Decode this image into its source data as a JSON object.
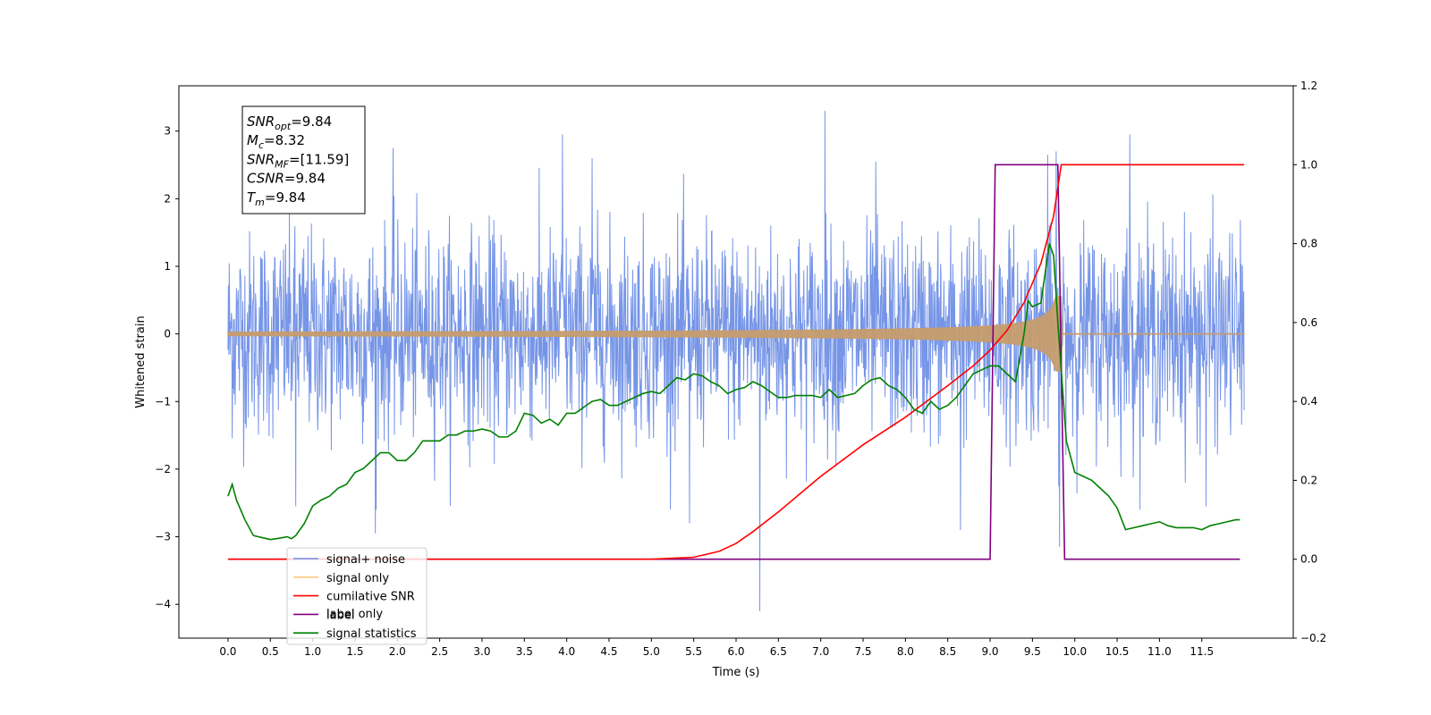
{
  "chart_data": {
    "type": "line",
    "xlabel": "Time (s)",
    "ylabel": "Whitened strain",
    "x_ticks": [
      "0.0",
      "0.5",
      "1.0",
      "1.5",
      "2.0",
      "2.5",
      "3.0",
      "3.5",
      "4.0",
      "4.5",
      "5.0",
      "5.5",
      "6.0",
      "6.5",
      "7.0",
      "7.5",
      "8.0",
      "8.5",
      "9.0",
      "9.5",
      "10.0",
      "10.5",
      "11.0",
      "11.5"
    ],
    "xlim": [
      -0.58,
      12.58
    ],
    "ylim_left": [
      -4.5,
      3.67
    ],
    "ylim_right": [
      -0.2,
      1.2
    ],
    "y_ticks_left": [
      -4,
      -3,
      -2,
      -1,
      0,
      1,
      2,
      3
    ],
    "y_ticks_right": [
      -0.2,
      0.0,
      0.2,
      0.4,
      0.6,
      0.8,
      1.0,
      1.2
    ],
    "annotation": [
      {
        "base": "SNR",
        "sub": "opt",
        "value": "=9.84"
      },
      {
        "base": "M",
        "sub": "c",
        "value": "=8.32"
      },
      {
        "base": "SNR",
        "sub": "MF",
        "value": "=[11.59]"
      },
      {
        "base": "CSNR",
        "sub": "",
        "value": "=9.84"
      },
      {
        "base": "T",
        "sub": "m",
        "value": "=9.84"
      }
    ],
    "legend_position": "lower-left",
    "legend": [
      {
        "label": "signal+ noise",
        "color": "#6f8fe6"
      },
      {
        "label": "signal only",
        "color": "#ffc87a"
      },
      {
        "label": "cumilative SNR",
        "color": "#ff0000"
      },
      {
        "label": "label",
        "color": "#800080"
      },
      {
        "label": "signal statistics",
        "color": "#008000"
      }
    ],
    "hidden_legend_text": "label only",
    "noise": {
      "color": "#6f8fe6",
      "x_range": [
        0.0,
        12.0
      ],
      "sigma": 0.75,
      "spikes": [
        [
          6.28,
          -4.1
        ],
        [
          7.05,
          3.3
        ],
        [
          9.82,
          -3.15
        ],
        [
          10.65,
          2.95
        ],
        [
          3.95,
          2.95
        ],
        [
          1.74,
          -2.95
        ],
        [
          1.95,
          2.75
        ],
        [
          8.65,
          -2.9
        ],
        [
          5.45,
          -2.8
        ],
        [
          11.55,
          -2.55
        ],
        [
          9.68,
          2.65
        ],
        [
          9.78,
          2.7
        ],
        [
          0.8,
          -2.55
        ],
        [
          4.3,
          2.6
        ],
        [
          7.65,
          2.55
        ]
      ]
    },
    "chirp": {
      "color": "#c69c6d",
      "merge_time": 9.84,
      "peak_amplitude": 0.55
    },
    "cumulative_snr": {
      "axis": "right",
      "x": [
        0.0,
        5.0,
        5.5,
        5.8,
        6.0,
        6.2,
        6.5,
        7.0,
        7.5,
        8.0,
        8.5,
        8.8,
        9.0,
        9.2,
        9.4,
        9.6,
        9.75,
        9.84,
        10.0,
        12.0
      ],
      "y": [
        0.0,
        0.0,
        0.005,
        0.02,
        0.04,
        0.07,
        0.12,
        0.21,
        0.29,
        0.36,
        0.44,
        0.49,
        0.53,
        0.58,
        0.65,
        0.75,
        0.87,
        1.0,
        1.0,
        1.0
      ]
    },
    "label_series": {
      "axis": "right",
      "x": [
        0.0,
        9.0,
        9.06,
        9.8,
        9.88,
        11.95
      ],
      "y": [
        0.0,
        0.0,
        1.0,
        1.0,
        0.0,
        0.0
      ]
    },
    "signal_statistics": {
      "axis": "right",
      "x": [
        0.0,
        0.05,
        0.1,
        0.2,
        0.3,
        0.4,
        0.5,
        0.6,
        0.7,
        0.75,
        0.8,
        0.9,
        1.0,
        1.1,
        1.2,
        1.3,
        1.4,
        1.5,
        1.6,
        1.7,
        1.8,
        1.9,
        2.0,
        2.1,
        2.2,
        2.3,
        2.4,
        2.5,
        2.6,
        2.7,
        2.8,
        2.9,
        3.0,
        3.1,
        3.2,
        3.3,
        3.4,
        3.5,
        3.6,
        3.7,
        3.8,
        3.9,
        4.0,
        4.1,
        4.2,
        4.3,
        4.4,
        4.5,
        4.6,
        4.7,
        4.8,
        4.9,
        5.0,
        5.1,
        5.2,
        5.3,
        5.4,
        5.5,
        5.6,
        5.7,
        5.8,
        5.9,
        6.0,
        6.1,
        6.2,
        6.3,
        6.4,
        6.5,
        6.6,
        6.7,
        6.8,
        6.9,
        7.0,
        7.1,
        7.2,
        7.3,
        7.4,
        7.5,
        7.6,
        7.7,
        7.8,
        7.9,
        8.0,
        8.1,
        8.2,
        8.3,
        8.4,
        8.5,
        8.6,
        8.7,
        8.8,
        8.9,
        9.0,
        9.1,
        9.2,
        9.3,
        9.4,
        9.45,
        9.5,
        9.6,
        9.7,
        9.75,
        9.8,
        9.85,
        9.9,
        10.0,
        10.1,
        10.2,
        10.3,
        10.4,
        10.5,
        10.6,
        10.7,
        10.8,
        10.9,
        11.0,
        11.1,
        11.2,
        11.3,
        11.4,
        11.5,
        11.6,
        11.7,
        11.8,
        11.9,
        11.95
      ],
      "y": [
        0.16,
        0.19,
        0.15,
        0.1,
        0.06,
        0.055,
        0.05,
        0.053,
        0.057,
        0.052,
        0.06,
        0.09,
        0.135,
        0.15,
        0.16,
        0.18,
        0.19,
        0.22,
        0.23,
        0.25,
        0.27,
        0.27,
        0.25,
        0.25,
        0.27,
        0.3,
        0.3,
        0.3,
        0.315,
        0.315,
        0.325,
        0.325,
        0.33,
        0.325,
        0.31,
        0.31,
        0.325,
        0.37,
        0.365,
        0.345,
        0.355,
        0.34,
        0.37,
        0.37,
        0.385,
        0.4,
        0.405,
        0.39,
        0.39,
        0.4,
        0.41,
        0.42,
        0.425,
        0.42,
        0.44,
        0.46,
        0.455,
        0.47,
        0.465,
        0.45,
        0.44,
        0.42,
        0.43,
        0.435,
        0.45,
        0.44,
        0.425,
        0.41,
        0.41,
        0.415,
        0.415,
        0.415,
        0.41,
        0.43,
        0.41,
        0.415,
        0.42,
        0.44,
        0.455,
        0.46,
        0.44,
        0.43,
        0.41,
        0.38,
        0.37,
        0.4,
        0.38,
        0.39,
        0.41,
        0.44,
        0.47,
        0.48,
        0.49,
        0.49,
        0.47,
        0.45,
        0.57,
        0.655,
        0.64,
        0.65,
        0.8,
        0.77,
        0.6,
        0.45,
        0.3,
        0.22,
        0.21,
        0.2,
        0.18,
        0.16,
        0.13,
        0.075,
        0.08,
        0.085,
        0.09,
        0.095,
        0.085,
        0.08,
        0.08,
        0.08,
        0.075,
        0.085,
        0.09,
        0.095,
        0.1,
        0.1
      ]
    }
  }
}
